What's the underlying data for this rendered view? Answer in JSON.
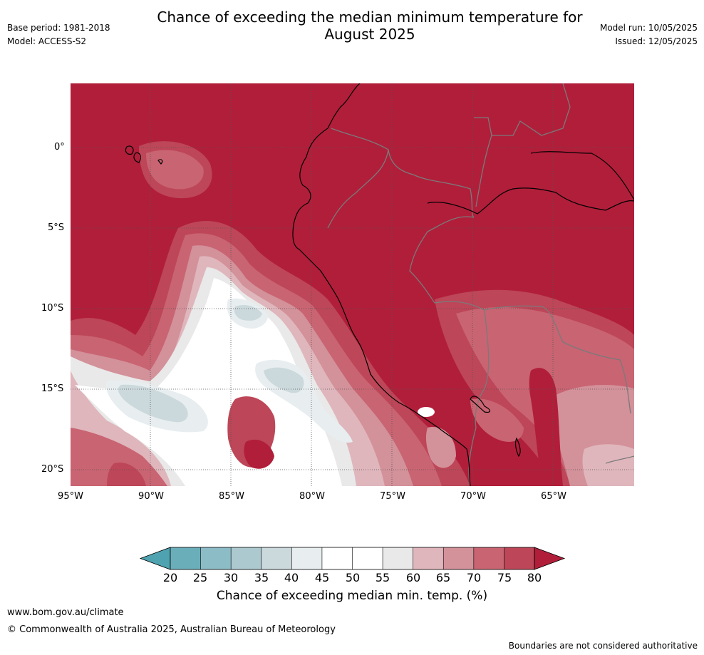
{
  "header": {
    "title_line1": "Chance of exceeding the median minimum temperature for",
    "title_line2": "August 2025",
    "base_period": "Base period: 1981-2018",
    "model": "Model: ACCESS-S2",
    "model_run": "Model run: 10/05/2025",
    "issued": "Issued: 12/05/2025"
  },
  "map": {
    "lat_labels": [
      "0°",
      "5°S",
      "10°S",
      "15°S",
      "20°S"
    ],
    "lon_labels": [
      "95°W",
      "90°W",
      "85°W",
      "80°W",
      "75°W",
      "70°W",
      "65°W"
    ]
  },
  "colorbar": {
    "ticks": [
      "20",
      "25",
      "30",
      "35",
      "40",
      "45",
      "50",
      "55",
      "60",
      "65",
      "70",
      "75",
      "80"
    ],
    "colors": [
      "#4fa3b0",
      "#6aaeba",
      "#8cbcc6",
      "#adc9d0",
      "#cbd8dc",
      "#e8eef0",
      "#ffffff",
      "#ffffff",
      "#e9e9e9",
      "#dfb6bc",
      "#d3919a",
      "#c96472",
      "#bd4658",
      "#b11e3a"
    ],
    "label": "Chance of exceeding median min. temp. (%)"
  },
  "footer": {
    "url": "www.bom.gov.au/climate",
    "copyright": "© Commonwealth of Australia 2025, Australian Bureau of Meteorology",
    "disclaimer": "Boundaries are not considered authoritative"
  }
}
